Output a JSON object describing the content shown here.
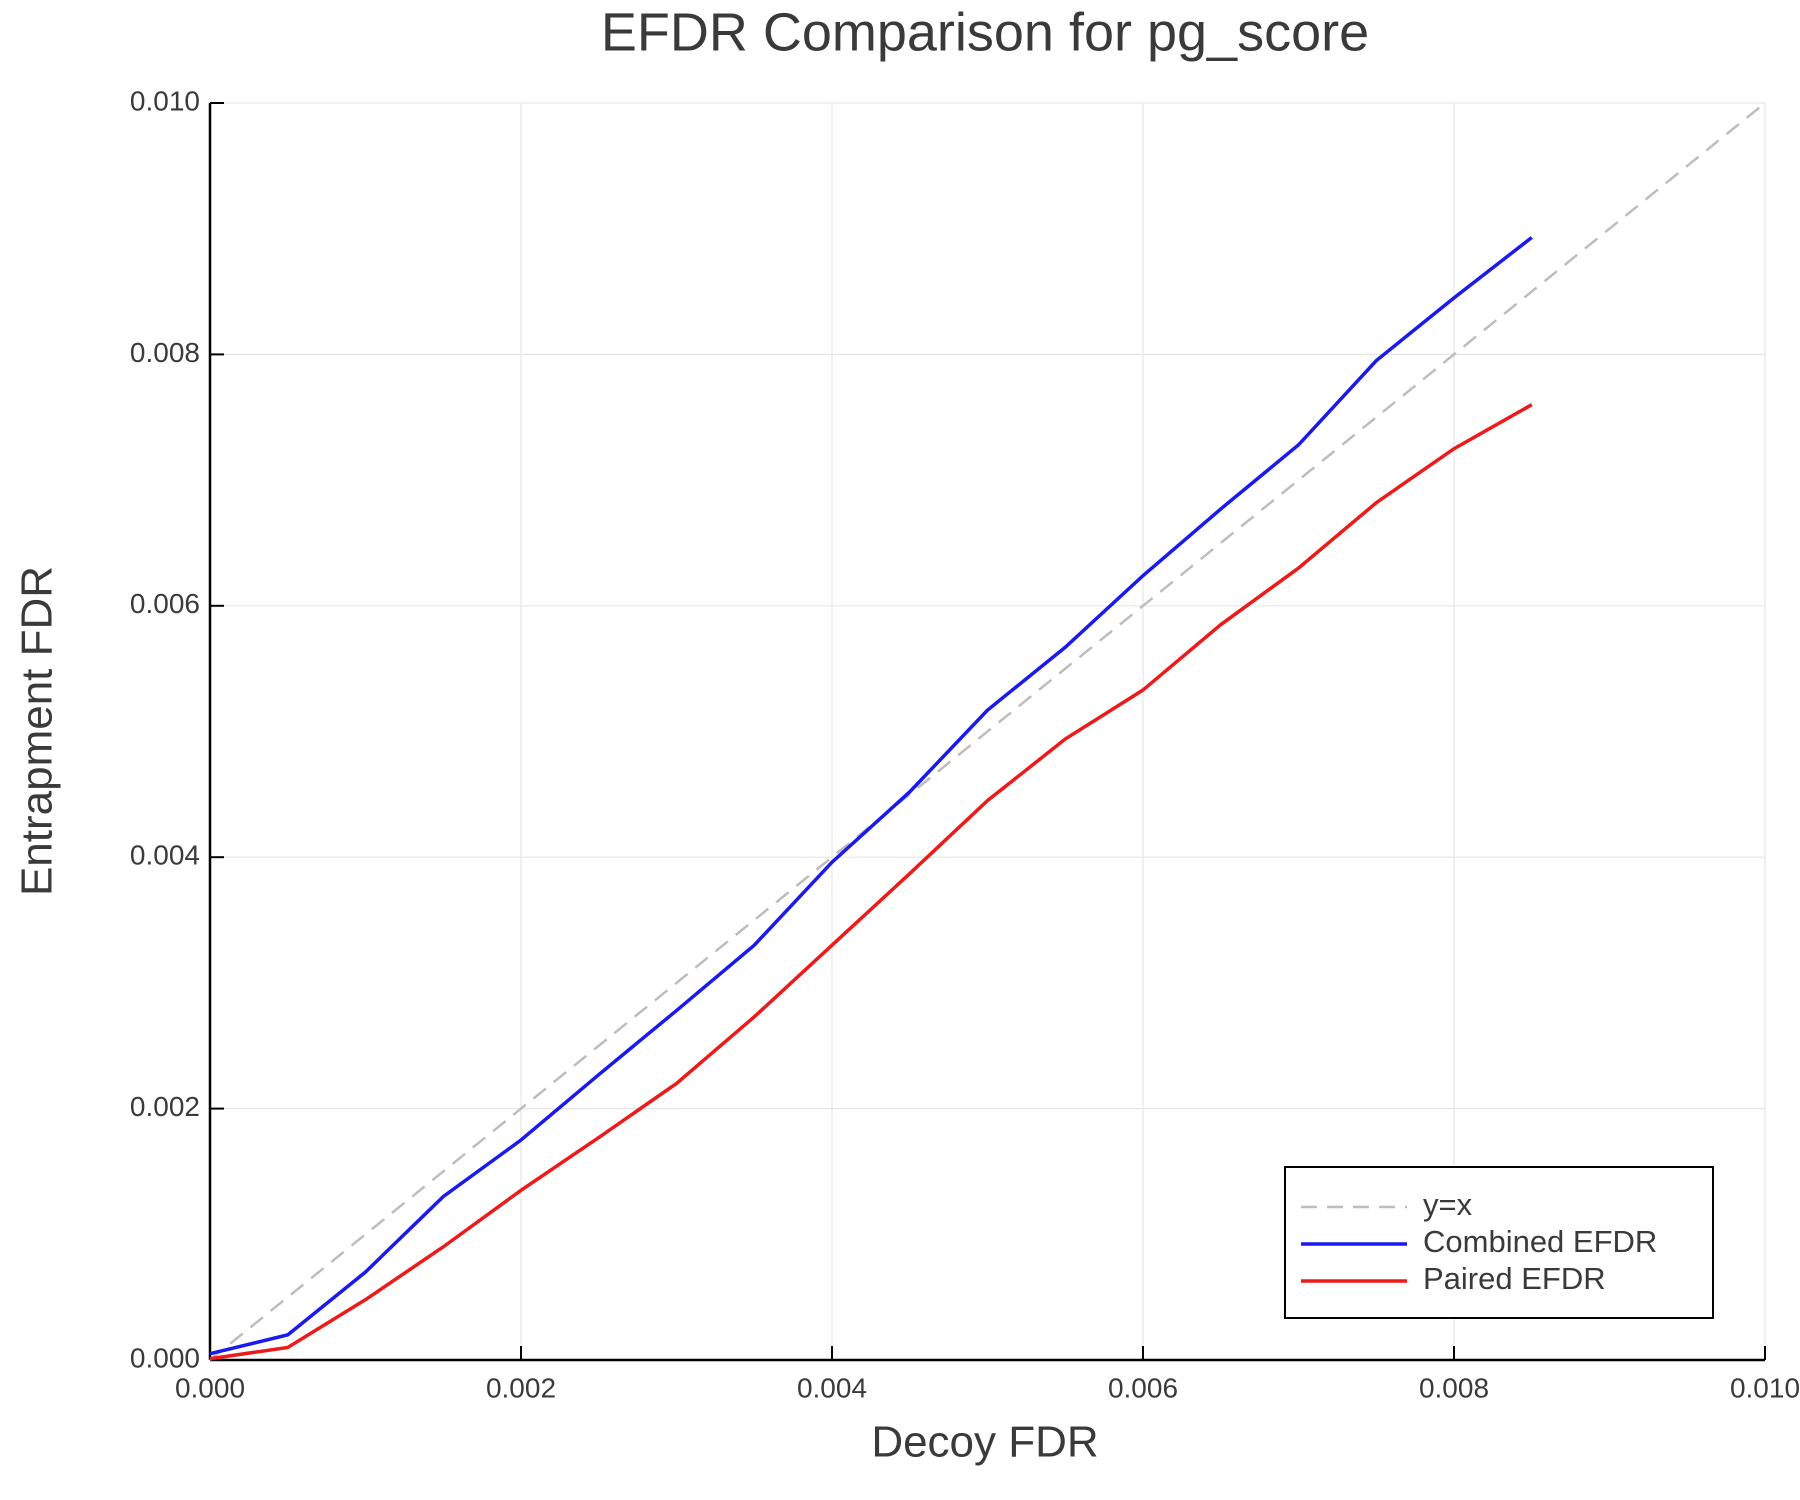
{
  "chart_data": {
    "type": "line",
    "title": "EFDR Comparison for pg_score",
    "xlabel": "Decoy FDR",
    "ylabel": "Entrapment FDR",
    "xlim": [
      0,
      0.01
    ],
    "ylim": [
      0,
      0.01
    ],
    "xticks": [
      {
        "value": 0,
        "label": "0.000"
      },
      {
        "value": 0.002,
        "label": "0.002"
      },
      {
        "value": 0.004,
        "label": "0.004"
      },
      {
        "value": 0.006,
        "label": "0.006"
      },
      {
        "value": 0.008,
        "label": "0.008"
      },
      {
        "value": 0.01,
        "label": "0.010"
      }
    ],
    "yticks": [
      {
        "value": 0,
        "label": "0.000"
      },
      {
        "value": 0.002,
        "label": "0.002"
      },
      {
        "value": 0.004,
        "label": "0.004"
      },
      {
        "value": 0.006,
        "label": "0.006"
      },
      {
        "value": 0.008,
        "label": "0.008"
      },
      {
        "value": 0.01,
        "label": "0.010"
      }
    ],
    "grid": true,
    "legend": "lower right",
    "series": [
      {
        "name": "y=x",
        "color": "#bdbdbd",
        "dashed": true,
        "x": [
          0,
          0.01
        ],
        "values": [
          0,
          0.01
        ]
      },
      {
        "name": "Combined EFDR",
        "color": "#1a1aee",
        "x": [
          0,
          0.0005,
          0.001,
          0.0015,
          0.002,
          0.0025,
          0.003,
          0.0035,
          0.004,
          0.0045,
          0.005,
          0.0055,
          0.006,
          0.0065,
          0.007,
          0.0075,
          0.008,
          0.0085
        ],
        "values": [
          5e-05,
          0.0002,
          0.0007,
          0.0013,
          0.00175,
          0.00227,
          0.00278,
          0.0033,
          0.00396,
          0.00452,
          0.00517,
          0.00567,
          0.00624,
          0.00677,
          0.00728,
          0.00795,
          0.00845,
          0.00893
        ]
      },
      {
        "name": "Paired EFDR",
        "color": "#ee1a1a",
        "x": [
          0,
          0.0005,
          0.001,
          0.0015,
          0.002,
          0.0025,
          0.003,
          0.0035,
          0.004,
          0.0045,
          0.005,
          0.0055,
          0.006,
          0.0065,
          0.007,
          0.0075,
          0.008,
          0.0085
        ],
        "values": [
          1e-05,
          0.0001,
          0.00048,
          0.0009,
          0.00135,
          0.00177,
          0.0022,
          0.00273,
          0.0033,
          0.00387,
          0.00445,
          0.00494,
          0.00533,
          0.00585,
          0.0063,
          0.00682,
          0.00725,
          0.0076
        ]
      }
    ]
  }
}
